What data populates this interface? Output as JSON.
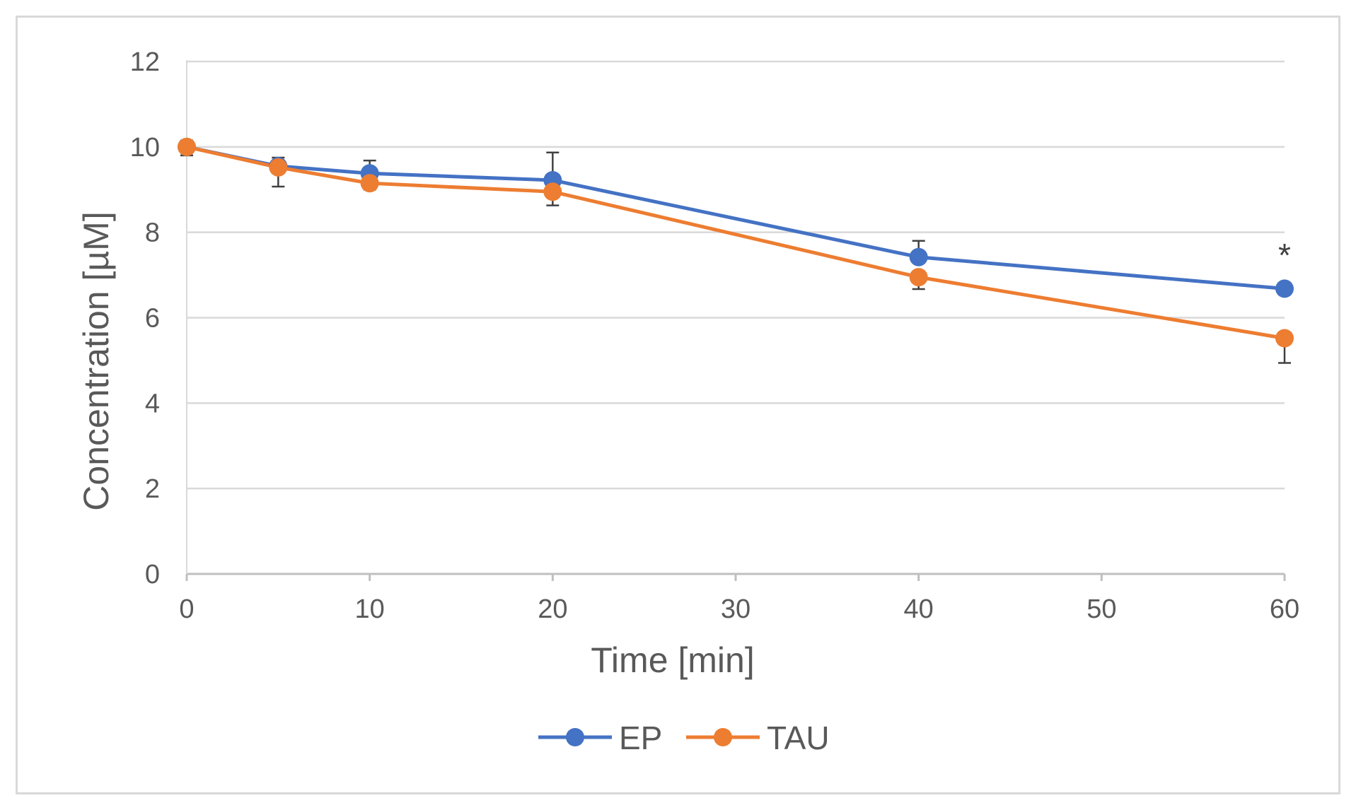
{
  "chart_data": {
    "type": "line",
    "title": "",
    "xlabel": "Time [min]",
    "ylabel": "Concentration [µM]",
    "xlim": [
      0,
      60
    ],
    "ylim": [
      0,
      12
    ],
    "x_ticks": [
      0,
      10,
      20,
      30,
      40,
      50,
      60
    ],
    "y_ticks": [
      0,
      2,
      4,
      6,
      8,
      10,
      12
    ],
    "grid": "horizontal",
    "legend_position": "bottom-center",
    "series": [
      {
        "name": "EP",
        "color": "#4472c4",
        "x": [
          0,
          5,
          10,
          20,
          40,
          60
        ],
        "y": [
          10.0,
          9.55,
          9.38,
          9.22,
          7.42,
          6.68
        ],
        "error": [
          0.15,
          0.2,
          0.3,
          0.65,
          0.38,
          0.1
        ]
      },
      {
        "name": "TAU",
        "color": "#ed7d31",
        "x": [
          0,
          5,
          10,
          20,
          40,
          60
        ],
        "y": [
          10.0,
          9.52,
          9.15,
          8.95,
          6.95,
          5.52
        ],
        "error": [
          0.2,
          0.45,
          0.15,
          0.32,
          0.28,
          0.58
        ]
      }
    ],
    "annotations": [
      {
        "text": "*",
        "x": 60,
        "y": 7.7
      }
    ]
  }
}
